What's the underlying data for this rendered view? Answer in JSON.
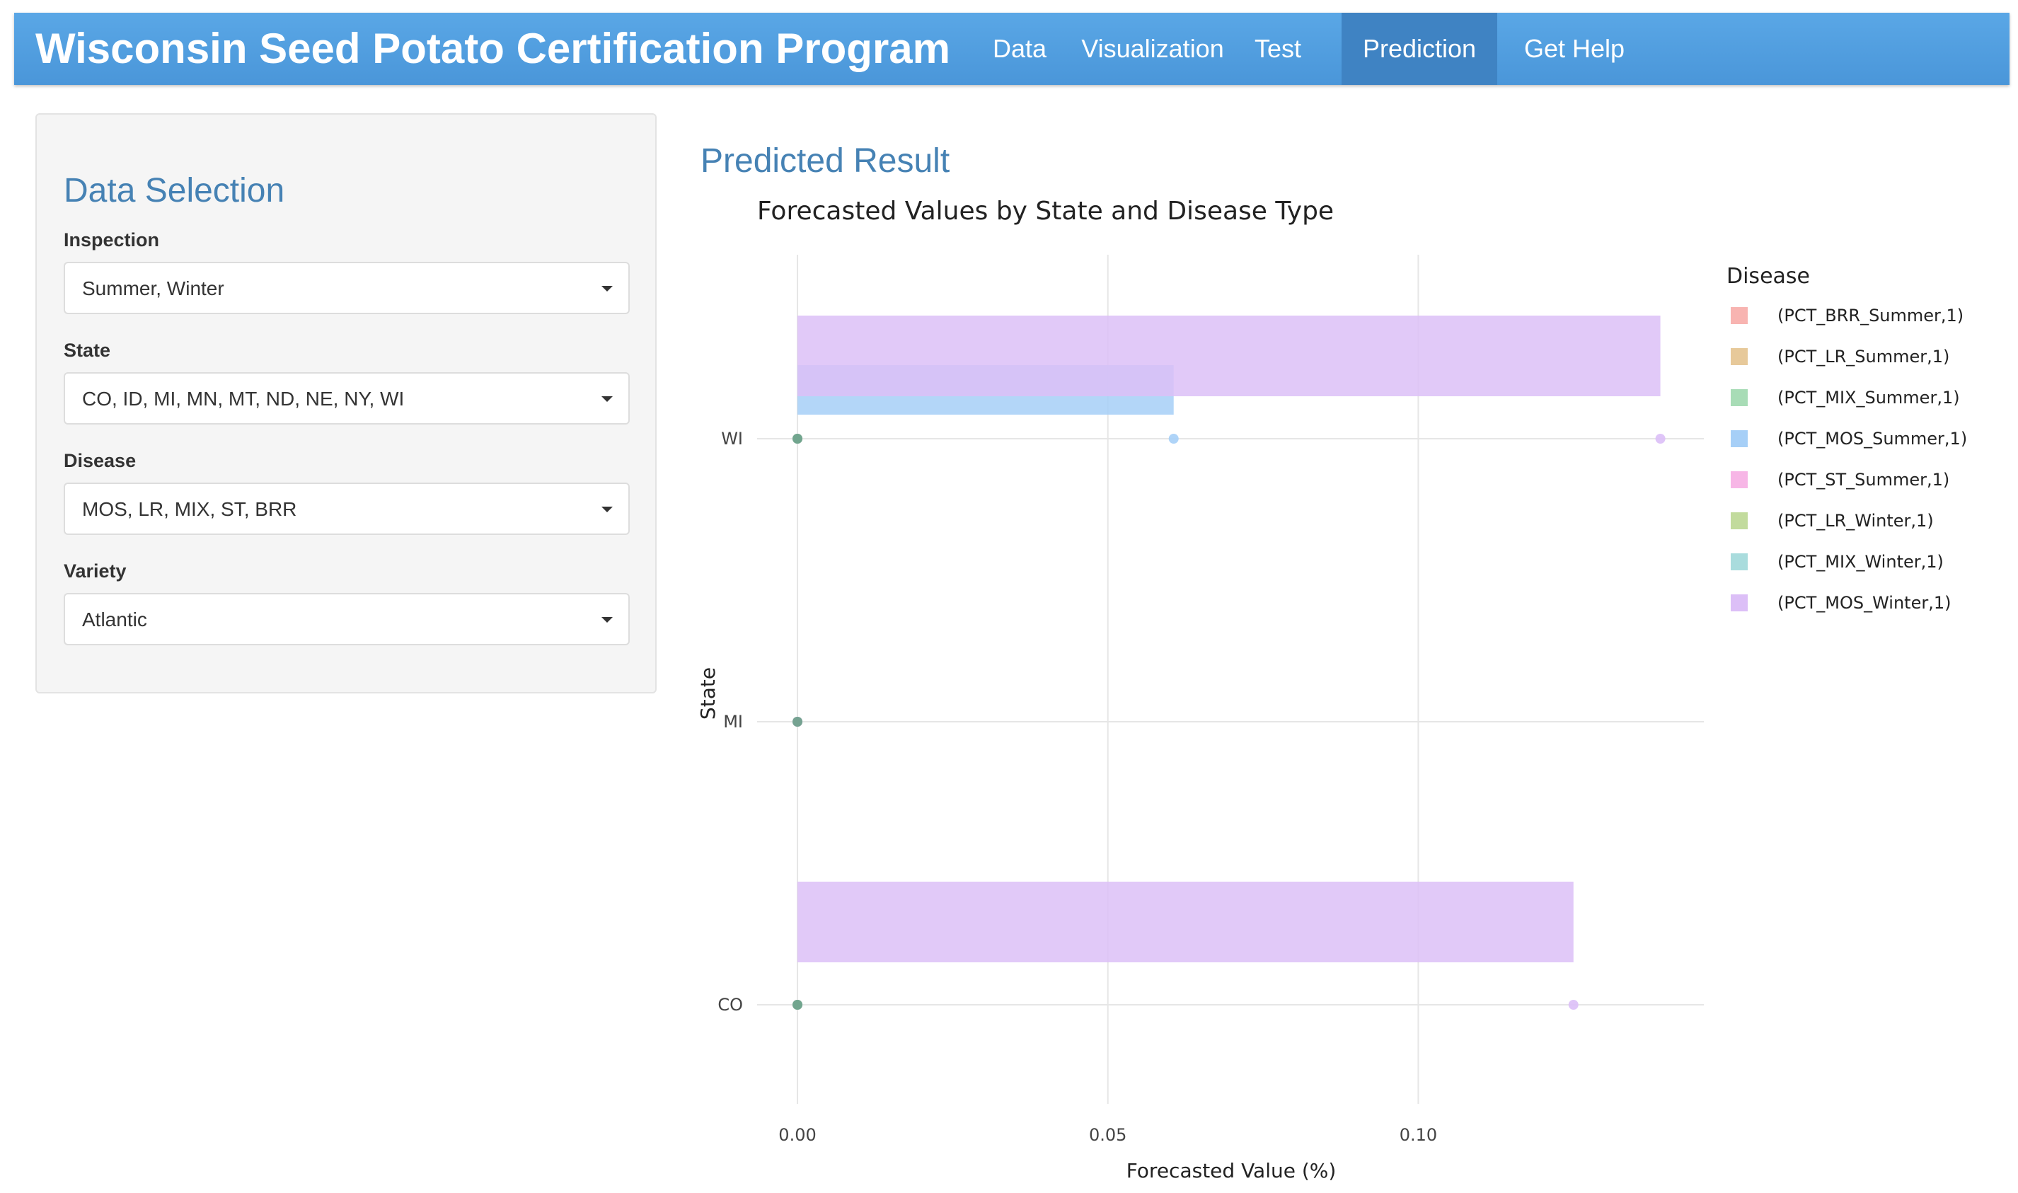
{
  "navbar": {
    "brand": "Wisconsin Seed Potato Certification Program",
    "items": [
      {
        "label": "Data",
        "active": false
      },
      {
        "label": "Visualization",
        "active": false
      },
      {
        "label": "Test",
        "active": false
      },
      {
        "label": "Prediction",
        "active": true
      },
      {
        "label": "Get Help",
        "active": false
      }
    ],
    "colors": {
      "background": "#4a96d9",
      "active": "#3f83c3"
    }
  },
  "sidebar": {
    "title": "Data Selection",
    "fields": [
      {
        "label": "Inspection",
        "value": "Summer, Winter"
      },
      {
        "label": "State",
        "value": "CO, ID, MI, MN, MT, ND, NE, NY, WI"
      },
      {
        "label": "Disease",
        "value": "MOS, LR, MIX, ST, BRR"
      },
      {
        "label": "Variety",
        "value": "Atlantic"
      }
    ]
  },
  "main": {
    "title": "Predicted Result"
  },
  "chart_data": {
    "type": "bar",
    "orientation": "horizontal",
    "title": "Forecasted Values by State and Disease Type",
    "xlabel": "Forecasted Value (%)",
    "ylabel": "State",
    "categories": [
      "WI",
      "MI",
      "CO"
    ],
    "xlim": [
      -0.0065,
      0.146
    ],
    "xticks": [
      "0.00",
      "0.05",
      "0.10"
    ],
    "xtick_values": [
      0,
      0.05,
      0.1
    ],
    "grid": true,
    "legend_title": "Disease",
    "legend_position": "right",
    "series": [
      {
        "name": "(PCT_BRR_Summer,1)",
        "color": "#f8b4b1",
        "values": [
          0,
          0,
          0
        ]
      },
      {
        "name": "(PCT_LR_Summer,1)",
        "color": "#e7c99a",
        "values": [
          0,
          0,
          0
        ]
      },
      {
        "name": "(PCT_MIX_Summer,1)",
        "color": "#a8dcb6",
        "values": [
          0,
          0,
          0
        ]
      },
      {
        "name": "(PCT_MOS_Summer,1)",
        "color": "#a6cff7",
        "values": [
          0.0606,
          0,
          0
        ]
      },
      {
        "name": "(PCT_ST_Summer,1)",
        "color": "#f7b6e6",
        "values": [
          0,
          0,
          0
        ]
      },
      {
        "name": "(PCT_LR_Winter,1)",
        "color": "#c2db9d",
        "values": [
          0,
          0,
          0
        ]
      },
      {
        "name": "(PCT_MIX_Winter,1)",
        "color": "#a9dcdd",
        "values": [
          0,
          0,
          0
        ]
      },
      {
        "name": "(PCT_MOS_Winter,1)",
        "color": "#dcbff7",
        "values": [
          0.139,
          0,
          0.125
        ]
      }
    ]
  }
}
